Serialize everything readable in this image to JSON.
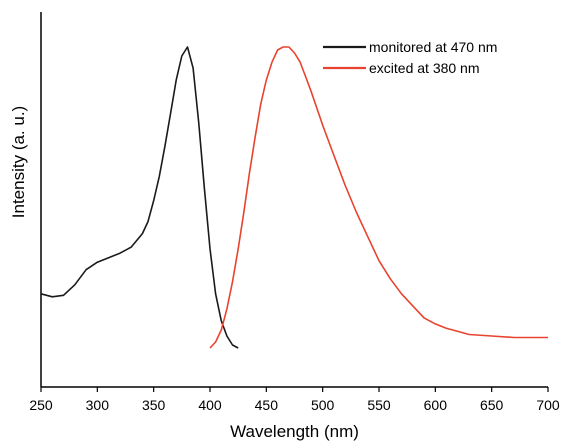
{
  "chart_data": {
    "type": "line",
    "title": "",
    "xlabel": "Wavelength (nm)",
    "ylabel": "Intensity (a. u.)",
    "xlim": [
      250,
      700
    ],
    "xticks": [
      250,
      300,
      350,
      400,
      450,
      500,
      550,
      600,
      650,
      700
    ],
    "yticks_visible": false,
    "ylim": [
      0,
      1.08
    ],
    "grid": false,
    "legend_position": "top-right",
    "series": [
      {
        "name": "monitored at 470 nm",
        "color": "#1a1a1a",
        "x": [
          250,
          260,
          270,
          280,
          290,
          300,
          310,
          320,
          330,
          340,
          345,
          350,
          355,
          360,
          365,
          370,
          375,
          380,
          385,
          390,
          395,
          400,
          405,
          410,
          415,
          420,
          425
        ],
        "y": [
          0.18,
          0.17,
          0.175,
          0.21,
          0.26,
          0.285,
          0.3,
          0.315,
          0.335,
          0.38,
          0.42,
          0.49,
          0.57,
          0.67,
          0.78,
          0.89,
          0.97,
          1.0,
          0.93,
          0.75,
          0.53,
          0.33,
          0.18,
          0.09,
          0.04,
          0.01,
          0.0
        ]
      },
      {
        "name": "excited at 380 nm",
        "color": "#e8432e",
        "x": [
          400,
          405,
          410,
          415,
          420,
          425,
          430,
          435,
          440,
          445,
          450,
          455,
          460,
          465,
          470,
          475,
          480,
          485,
          490,
          500,
          510,
          520,
          530,
          540,
          550,
          560,
          570,
          580,
          590,
          600,
          610,
          620,
          630,
          650,
          670,
          700
        ],
        "y": [
          0.0,
          0.02,
          0.06,
          0.13,
          0.22,
          0.33,
          0.45,
          0.58,
          0.7,
          0.81,
          0.89,
          0.95,
          0.99,
          1.0,
          1.0,
          0.98,
          0.95,
          0.9,
          0.85,
          0.74,
          0.64,
          0.54,
          0.45,
          0.37,
          0.29,
          0.23,
          0.18,
          0.14,
          0.1,
          0.08,
          0.065,
          0.055,
          0.045,
          0.04,
          0.035,
          0.035
        ]
      }
    ]
  }
}
